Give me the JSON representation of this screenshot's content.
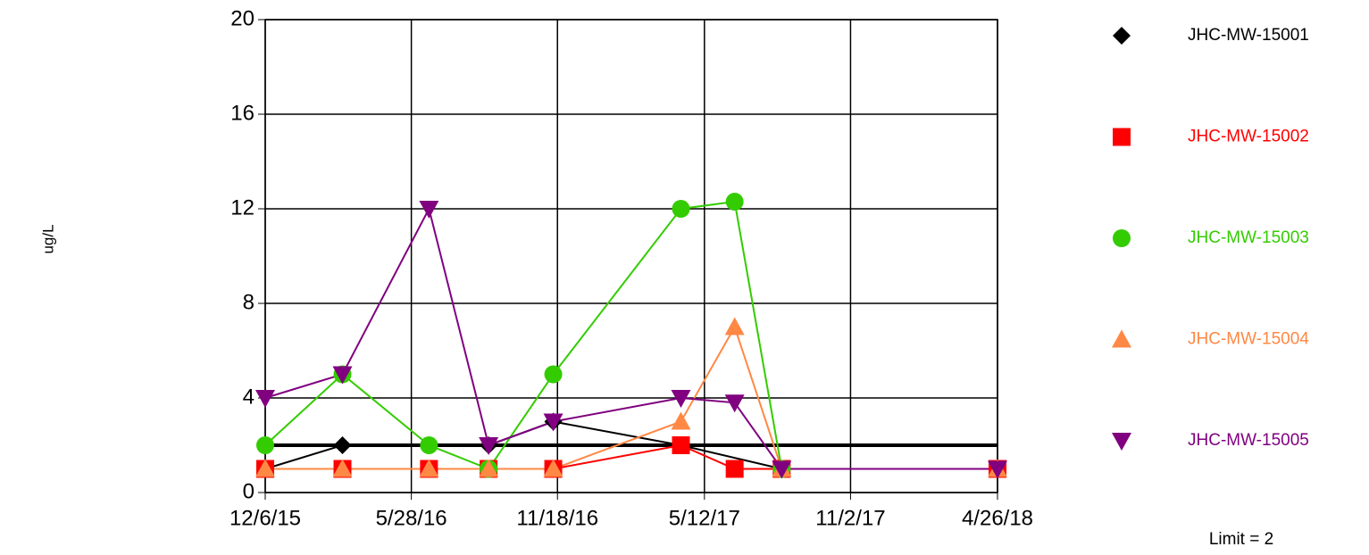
{
  "chart_data": {
    "type": "line",
    "ylabel": "ug/L",
    "ylim": [
      0,
      20
    ],
    "yticks": [
      0,
      4,
      8,
      12,
      16,
      20
    ],
    "xlim": [
      "2015-12-06",
      "2018-04-26"
    ],
    "xticks": [
      {
        "value": "2015-12-06",
        "label": "12/6/15"
      },
      {
        "value": "2016-05-28",
        "label": "5/28/16"
      },
      {
        "value": "2016-11-18",
        "label": "11/18/16"
      },
      {
        "value": "2017-05-12",
        "label": "5/12/17"
      },
      {
        "value": "2017-11-02",
        "label": "11/2/17"
      },
      {
        "value": "2018-04-26",
        "label": "4/26/18"
      }
    ],
    "grid": true,
    "limit": 2,
    "limit_label": "Limit = 2",
    "legend": "right",
    "series": [
      {
        "name": "JHC-MW-15001",
        "color": "#000000",
        "marker": "diamond",
        "x": [
          "2015-12-06",
          "2016-03-07",
          "2016-08-28",
          "2016-11-13",
          "2017-04-14",
          "2017-08-12",
          "2018-04-26"
        ],
        "values": [
          1,
          2,
          2,
          3,
          2,
          1,
          1
        ]
      },
      {
        "name": "JHC-MW-15002",
        "color": "#ff0000",
        "marker": "square",
        "x": [
          "2015-12-06",
          "2016-03-07",
          "2016-06-18",
          "2016-08-28",
          "2016-11-13",
          "2017-04-14",
          "2017-06-17",
          "2017-08-12",
          "2018-04-26"
        ],
        "values": [
          1,
          1,
          1,
          1,
          1,
          2,
          1,
          1,
          1
        ]
      },
      {
        "name": "JHC-MW-15003",
        "color": "#33cc00",
        "marker": "circle",
        "x": [
          "2015-12-06",
          "2016-03-07",
          "2016-06-18",
          "2016-08-28",
          "2016-11-13",
          "2017-04-14",
          "2017-06-17",
          "2017-08-12"
        ],
        "values": [
          2,
          5,
          2,
          1,
          5,
          12,
          12.3,
          1
        ]
      },
      {
        "name": "JHC-MW-15004",
        "color": "#ff8844",
        "marker": "triangle-up",
        "x": [
          "2015-12-06",
          "2016-03-07",
          "2016-06-18",
          "2016-08-28",
          "2016-11-13",
          "2017-04-14",
          "2017-06-17",
          "2017-08-12",
          "2018-04-26"
        ],
        "values": [
          1,
          1,
          1,
          1,
          1,
          3,
          7,
          1,
          1
        ]
      },
      {
        "name": "JHC-MW-15005",
        "color": "#800080",
        "marker": "triangle-down",
        "x": [
          "2015-12-06",
          "2016-03-07",
          "2016-06-18",
          "2016-08-28",
          "2016-11-13",
          "2017-04-14",
          "2017-06-17",
          "2017-08-12",
          "2018-04-26"
        ],
        "values": [
          4,
          5,
          12,
          2,
          3,
          4,
          3.8,
          1,
          1
        ]
      }
    ]
  }
}
